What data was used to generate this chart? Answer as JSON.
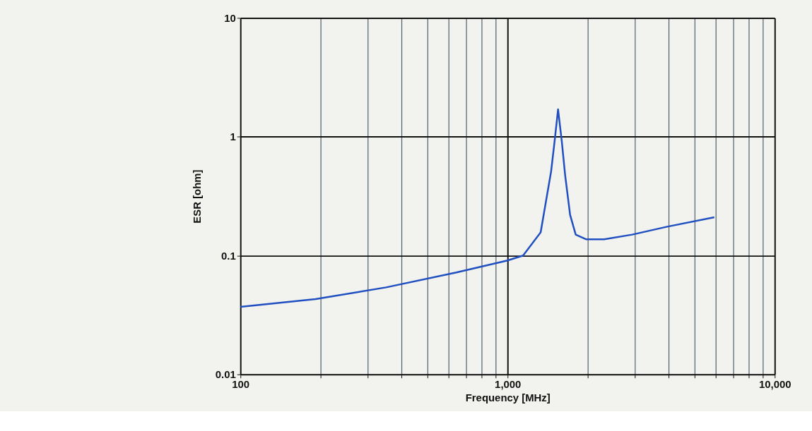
{
  "chart_data": {
    "type": "line",
    "xlabel": "Frequency [MHz]",
    "ylabel": "ESR [ohm]",
    "log": "xy",
    "grid": true,
    "marker": "none",
    "line_style": "solid",
    "xlim": [
      100,
      10000
    ],
    "ylim": [
      0.01,
      10
    ],
    "xticks": [
      {
        "value": 100,
        "label": "100"
      },
      {
        "value": 200,
        "label": null
      },
      {
        "value": 300,
        "label": null
      },
      {
        "value": 400,
        "label": null
      },
      {
        "value": 500,
        "label": null
      },
      {
        "value": 600,
        "label": null
      },
      {
        "value": 700,
        "label": null
      },
      {
        "value": 800,
        "label": null
      },
      {
        "value": 900,
        "label": null
      },
      {
        "value": 1000,
        "label": "1,000"
      },
      {
        "value": 2000,
        "label": null
      },
      {
        "value": 3000,
        "label": null
      },
      {
        "value": 4000,
        "label": null
      },
      {
        "value": 5000,
        "label": null
      },
      {
        "value": 6000,
        "label": null
      },
      {
        "value": 7000,
        "label": null
      },
      {
        "value": 8000,
        "label": null
      },
      {
        "value": 9000,
        "label": null
      },
      {
        "value": 10000,
        "label": "10,000"
      }
    ],
    "yticks": [
      0.01,
      0.1,
      1,
      10
    ],
    "series": [
      {
        "color": "#1f4fc0",
        "x": [
          100,
          191,
          351,
          643,
          1000,
          1143,
          1330,
          1455,
          1500,
          1545,
          1595,
          1643,
          1714,
          1799,
          1972,
          2297,
          2924,
          3955,
          5940
        ],
        "values": [
          0.037,
          0.043,
          0.054,
          0.072,
          0.091,
          0.1,
          0.157,
          0.51,
          0.92,
          1.7,
          0.92,
          0.47,
          0.22,
          0.15,
          0.137,
          0.137,
          0.15,
          0.175,
          0.21
        ]
      }
    ]
  }
}
